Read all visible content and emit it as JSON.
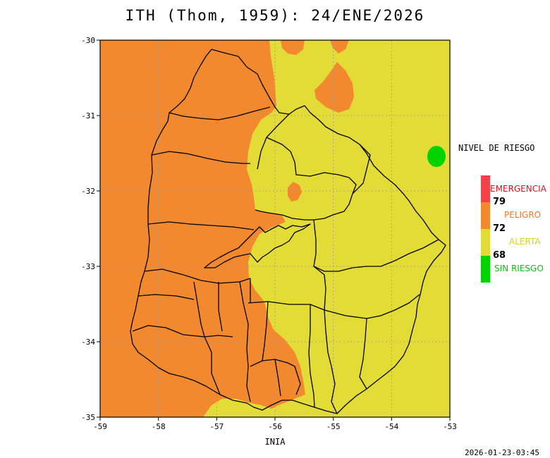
{
  "title": "ITH (Thom, 1959): 24/ENE/2026",
  "footer": {
    "credit": "INIA",
    "timestamp": "2026-01-23-03:45"
  },
  "axes": {
    "x_ticks": [
      "-59",
      "-58",
      "-57",
      "-56",
      "-55",
      "-54",
      "-53"
    ],
    "y_ticks": [
      "-30",
      "-31",
      "-32",
      "-33",
      "-34",
      "-35"
    ],
    "lon_range": [
      -59,
      -53
    ],
    "lat_range": [
      -35,
      -30
    ],
    "grid": true
  },
  "legend": {
    "title": "NIVEL DE RIESGO",
    "items": [
      {
        "label": "EMERGENCIA",
        "color": "#f4424a"
      },
      {
        "label": "PELIGRO",
        "color": "#f2892f"
      },
      {
        "label": "ALERTA",
        "color": "#e3dc37"
      },
      {
        "label": "SIN RIESGO",
        "color": "#00d400"
      }
    ],
    "thresholds": [
      "79",
      "72",
      "68"
    ]
  },
  "colors": {
    "emergencia": "#f4424a",
    "peligro": "#f2892f",
    "alerta": "#e3dc37",
    "sin_riesgo": "#00d400",
    "label_emergencia": "#d8141e",
    "label_peligro": "#f07828",
    "label_alerta": "#e0d020",
    "label_sin_riesgo": "#10c010"
  }
}
